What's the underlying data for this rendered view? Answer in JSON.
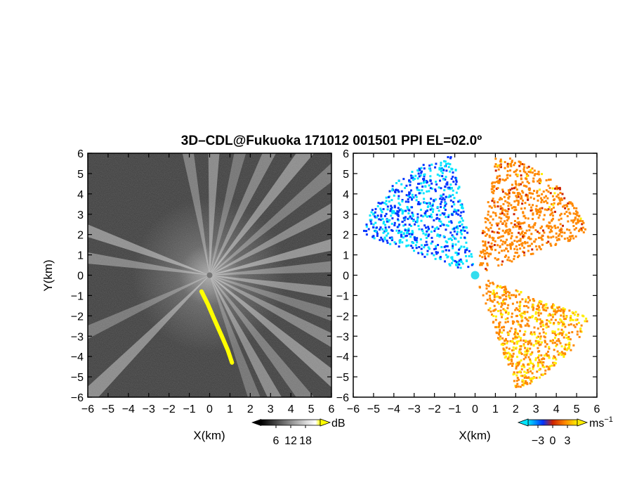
{
  "chart_data": {
    "title": "3D–CDL@Fukuoka 171012 001501 PPI EL=02.0º",
    "panels": [
      {
        "type": "heatmap",
        "variable": "reflectivity",
        "xlabel": "X(km)",
        "ylabel": "Y(km)",
        "xlim": [
          -6,
          6
        ],
        "ylim": [
          -6,
          6
        ],
        "x_ticks": [
          "−6",
          "−5",
          "−4",
          "−3",
          "−2",
          "−1",
          "0",
          "1",
          "2",
          "3",
          "4",
          "5",
          "6"
        ],
        "y_ticks": [
          "6",
          "5",
          "4",
          "3",
          "2",
          "1",
          "0",
          "−1",
          "−2",
          "−3",
          "−4",
          "−5",
          "−6"
        ],
        "colorbar": {
          "unit": "dB",
          "ticks": [
            "6",
            "12",
            "18"
          ],
          "range": [
            0,
            24
          ],
          "colors": [
            "#000000",
            "#ffffff",
            "#ffff00"
          ]
        },
        "features": [
          {
            "name": "bright beams",
            "azimuths_deg": [
              -70,
              -62,
              -52,
              -40,
              -28,
              -18,
              -8,
              4,
              14,
              28,
              40,
              52,
              64,
              76,
              88,
              100,
              160,
              172,
              205,
              225
            ]
          },
          {
            "name": "yellow clutter line",
            "points": [
              [
                -0.4,
                -0.8
              ],
              [
                -0.1,
                -1.4
              ],
              [
                0.2,
                -2.1
              ],
              [
                0.6,
                -3.0
              ],
              [
                0.9,
                -3.7
              ],
              [
                1.1,
                -4.3
              ]
            ]
          }
        ]
      },
      {
        "type": "scatter",
        "variable": "radial velocity",
        "xlabel": "X(km)",
        "xlim": [
          -6,
          6
        ],
        "ylim": [
          -6,
          6
        ],
        "x_ticks": [
          "−6",
          "−5",
          "−4",
          "−3",
          "−2",
          "−1",
          "0",
          "1",
          "2",
          "3",
          "4",
          "5",
          "6"
        ],
        "y_ticks": [
          "6",
          "5",
          "4",
          "3",
          "2",
          "1",
          "0",
          "−1",
          "−2",
          "−3",
          "−4",
          "−5",
          "−6"
        ],
        "colorbar": {
          "unit": "ms",
          "unit_exp": "−1",
          "ticks": [
            "−3",
            "0",
            "3"
          ],
          "range": [
            -5,
            5
          ],
          "colors": [
            "#00e5ff",
            "#0033ff",
            "#cc2200",
            "#ff8800",
            "#ffee00"
          ]
        },
        "regions": [
          {
            "name": "approaching sector (west)",
            "az_from_deg": 100,
            "az_to_deg": 160,
            "range_km": [
              0.3,
              6.0
            ],
            "velocity_ms": [
              -5,
              -2
            ]
          },
          {
            "name": "receding sector (north-east)",
            "az_from_deg": 20,
            "az_to_deg": 80,
            "range_km": [
              0.3,
              6.0
            ],
            "velocity_ms": [
              1,
              4
            ]
          },
          {
            "name": "receding sector (south-east)",
            "az_from_deg": -70,
            "az_to_deg": -20,
            "range_km": [
              0.3,
              6.0
            ],
            "velocity_ms": [
              2,
              5
            ]
          }
        ]
      }
    ]
  }
}
